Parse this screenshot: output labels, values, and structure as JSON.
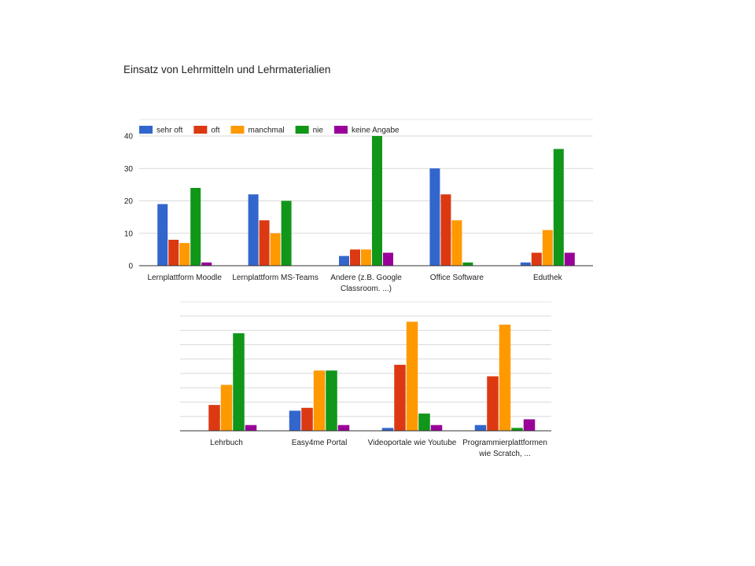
{
  "chart_data": [
    {
      "type": "bar",
      "title": "Einsatz von Lehrmitteln und Lehrmaterialien",
      "categories": [
        [
          "Lernplattform Moodle"
        ],
        [
          "Lernplattform MS-Teams"
        ],
        [
          "Andere (z.B. Google",
          "Classroom. ...)"
        ],
        [
          "Office Software"
        ],
        [
          "Eduthek"
        ]
      ],
      "series": [
        {
          "name": "sehr oft",
          "color": "#3366cc",
          "values": [
            19,
            22,
            3,
            30,
            1
          ]
        },
        {
          "name": "oft",
          "color": "#dc3912",
          "values": [
            8,
            14,
            5,
            22,
            4
          ]
        },
        {
          "name": "manchmal",
          "color": "#ff9900",
          "values": [
            7,
            10,
            5,
            14,
            11
          ]
        },
        {
          "name": "nie",
          "color": "#109618",
          "values": [
            24,
            20,
            40,
            1,
            36
          ]
        },
        {
          "name": "keine Angabe",
          "color": "#990099",
          "values": [
            1,
            0,
            4,
            0,
            4
          ]
        }
      ],
      "ylim": [
        0,
        40
      ],
      "yticks": [
        0,
        10,
        20,
        30,
        40
      ],
      "grid": true,
      "legend": "top-left"
    },
    {
      "type": "bar",
      "categories": [
        [
          "Lehrbuch"
        ],
        [
          "Easy4me Portal"
        ],
        [
          "Videoportale wie Youtube"
        ],
        [
          "Programmierplattformen",
          "wie Scratch, ..."
        ]
      ],
      "series": [
        {
          "name": "sehr oft",
          "color": "#3366cc",
          "values": [
            0,
            7,
            1,
            2
          ]
        },
        {
          "name": "oft",
          "color": "#dc3912",
          "values": [
            9,
            8,
            23,
            19
          ]
        },
        {
          "name": "manchmal",
          "color": "#ff9900",
          "values": [
            16,
            21,
            38,
            37
          ]
        },
        {
          "name": "nie",
          "color": "#109618",
          "values": [
            34,
            21,
            6,
            1
          ]
        },
        {
          "name": "keine Angabe",
          "color": "#990099",
          "values": [
            2,
            2,
            2,
            4
          ]
        }
      ],
      "ylim": [
        0,
        40
      ],
      "grid": true
    }
  ]
}
